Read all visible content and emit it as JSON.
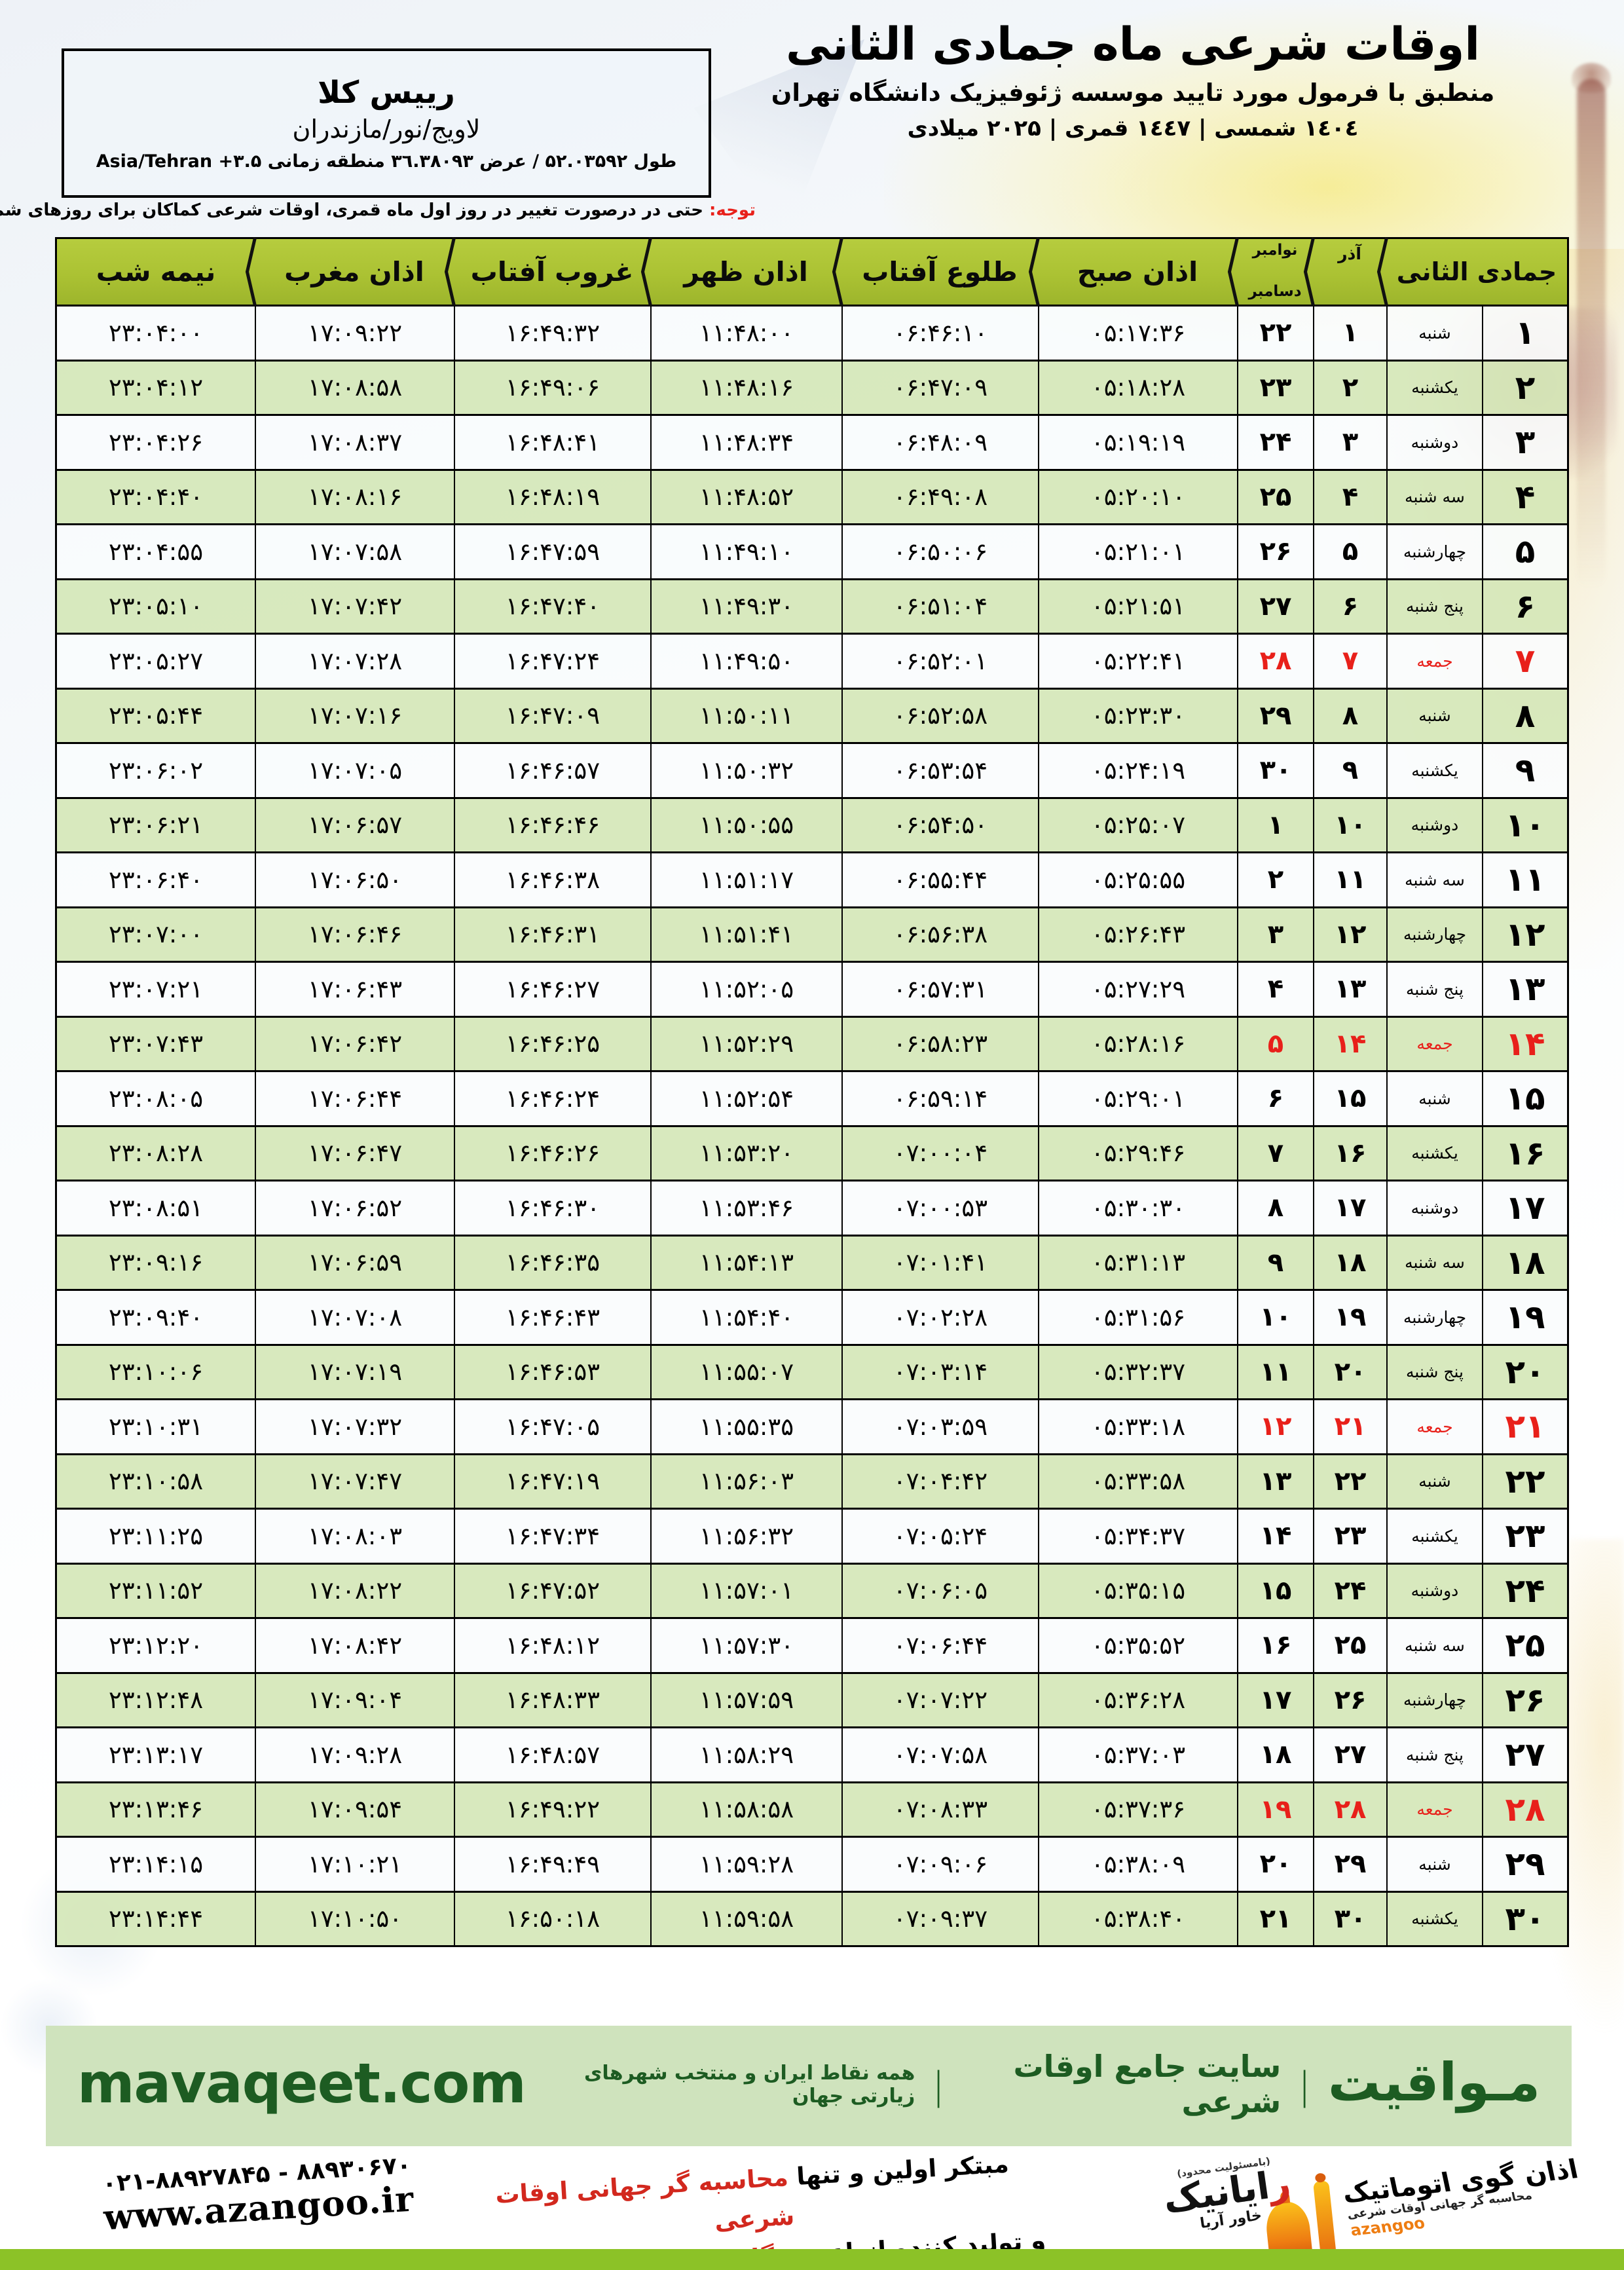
{
  "header": {
    "title": "اوقات شرعی ماه جمادی الثانی",
    "subtitle": "منطبق با فرمول مورد تایید موسسه ژئوفیزیک دانشگاه تهران",
    "dates": "۱٤۰٤ شمسی | ۱٤٤۷ قمری | ۲۰۲۵ میلادی"
  },
  "location": {
    "name": "رییس کلا",
    "region": "لاویج/نور/مازندران",
    "coords_fa": "طول ۵۲.۰۳۵۹۲ / عرض ۳٦.۳۸۰۹۳ منطقه زمانی",
    "coords_tz": "Asia/Tehran +۳.۵"
  },
  "notice": {
    "label": "توجه:",
    "text": " حتی در درصورت تغییر در روز اول ماه قمری، اوقات شرعی کماکان برای روزهای شمسی و میلادی معتبر است."
  },
  "table": {
    "columns": [
      {
        "key": "jumada",
        "label": "جمادی الثانی",
        "span": 2
      },
      {
        "key": "azar",
        "label": "آذر"
      },
      {
        "key": "nov-dec",
        "label": "نوامبر",
        "label2": "دسامبر"
      },
      {
        "key": "azan-sobh",
        "label": "اذان صبح"
      },
      {
        "key": "tolu-aftab",
        "label": "طلوع آفتاب"
      },
      {
        "key": "azan-zohr",
        "label": "اذان ظهر"
      },
      {
        "key": "ghorub-aftab",
        "label": "غروب آفتاب"
      },
      {
        "key": "azan-maghreb",
        "label": "اذان مغرب"
      },
      {
        "key": "nimeshab",
        "label": "نیمه شب"
      }
    ],
    "rows": [
      {
        "day": "۱",
        "weekday": "شنبه",
        "azar": "۱",
        "greg": "۲۲",
        "sobh": "۰۵:۱۷:۳۶",
        "tolu": "۰۶:۴۶:۱۰",
        "zohr": "۱۱:۴۸:۰۰",
        "ghorub": "۱۶:۴۹:۳۲",
        "maghreb": "۱۷:۰۹:۲۲",
        "nimeshab": "۲۳:۰۴:۰۰",
        "friday": false
      },
      {
        "day": "۲",
        "weekday": "یکشنبه",
        "azar": "۲",
        "greg": "۲۳",
        "sobh": "۰۵:۱۸:۲۸",
        "tolu": "۰۶:۴۷:۰۹",
        "zohr": "۱۱:۴۸:۱۶",
        "ghorub": "۱۶:۴۹:۰۶",
        "maghreb": "۱۷:۰۸:۵۸",
        "nimeshab": "۲۳:۰۴:۱۲",
        "friday": false
      },
      {
        "day": "۳",
        "weekday": "دوشنبه",
        "azar": "۳",
        "greg": "۲۴",
        "sobh": "۰۵:۱۹:۱۹",
        "tolu": "۰۶:۴۸:۰۹",
        "zohr": "۱۱:۴۸:۳۴",
        "ghorub": "۱۶:۴۸:۴۱",
        "maghreb": "۱۷:۰۸:۳۷",
        "nimeshab": "۲۳:۰۴:۲۶",
        "friday": false
      },
      {
        "day": "۴",
        "weekday": "سه شنبه",
        "azar": "۴",
        "greg": "۲۵",
        "sobh": "۰۵:۲۰:۱۰",
        "tolu": "۰۶:۴۹:۰۸",
        "zohr": "۱۱:۴۸:۵۲",
        "ghorub": "۱۶:۴۸:۱۹",
        "maghreb": "۱۷:۰۸:۱۶",
        "nimeshab": "۲۳:۰۴:۴۰",
        "friday": false
      },
      {
        "day": "۵",
        "weekday": "چهارشنبه",
        "azar": "۵",
        "greg": "۲۶",
        "sobh": "۰۵:۲۱:۰۱",
        "tolu": "۰۶:۵۰:۰۶",
        "zohr": "۱۱:۴۹:۱۰",
        "ghorub": "۱۶:۴۷:۵۹",
        "maghreb": "۱۷:۰۷:۵۸",
        "nimeshab": "۲۳:۰۴:۵۵",
        "friday": false
      },
      {
        "day": "۶",
        "weekday": "پنج شنبه",
        "azar": "۶",
        "greg": "۲۷",
        "sobh": "۰۵:۲۱:۵۱",
        "tolu": "۰۶:۵۱:۰۴",
        "zohr": "۱۱:۴۹:۳۰",
        "ghorub": "۱۶:۴۷:۴۰",
        "maghreb": "۱۷:۰۷:۴۲",
        "nimeshab": "۲۳:۰۵:۱۰",
        "friday": false
      },
      {
        "day": "۷",
        "weekday": "جمعه",
        "azar": "۷",
        "greg": "۲۸",
        "sobh": "۰۵:۲۲:۴۱",
        "tolu": "۰۶:۵۲:۰۱",
        "zohr": "۱۱:۴۹:۵۰",
        "ghorub": "۱۶:۴۷:۲۴",
        "maghreb": "۱۷:۰۷:۲۸",
        "nimeshab": "۲۳:۰۵:۲۷",
        "friday": true
      },
      {
        "day": "۸",
        "weekday": "شنبه",
        "azar": "۸",
        "greg": "۲۹",
        "sobh": "۰۵:۲۳:۳۰",
        "tolu": "۰۶:۵۲:۵۸",
        "zohr": "۱۱:۵۰:۱۱",
        "ghorub": "۱۶:۴۷:۰۹",
        "maghreb": "۱۷:۰۷:۱۶",
        "nimeshab": "۲۳:۰۵:۴۴",
        "friday": false
      },
      {
        "day": "۹",
        "weekday": "یکشنبه",
        "azar": "۹",
        "greg": "۳۰",
        "sobh": "۰۵:۲۴:۱۹",
        "tolu": "۰۶:۵۳:۵۴",
        "zohr": "۱۱:۵۰:۳۲",
        "ghorub": "۱۶:۴۶:۵۷",
        "maghreb": "۱۷:۰۷:۰۵",
        "nimeshab": "۲۳:۰۶:۰۲",
        "friday": false
      },
      {
        "day": "۱۰",
        "weekday": "دوشنبه",
        "azar": "۱۰",
        "greg": "۱",
        "sobh": "۰۵:۲۵:۰۷",
        "tolu": "۰۶:۵۴:۵۰",
        "zohr": "۱۱:۵۰:۵۵",
        "ghorub": "۱۶:۴۶:۴۶",
        "maghreb": "۱۷:۰۶:۵۷",
        "nimeshab": "۲۳:۰۶:۲۱",
        "friday": false
      },
      {
        "day": "۱۱",
        "weekday": "سه شنبه",
        "azar": "۱۱",
        "greg": "۲",
        "sobh": "۰۵:۲۵:۵۵",
        "tolu": "۰۶:۵۵:۴۴",
        "zohr": "۱۱:۵۱:۱۷",
        "ghorub": "۱۶:۴۶:۳۸",
        "maghreb": "۱۷:۰۶:۵۰",
        "nimeshab": "۲۳:۰۶:۴۰",
        "friday": false
      },
      {
        "day": "۱۲",
        "weekday": "چهارشنبه",
        "azar": "۱۲",
        "greg": "۳",
        "sobh": "۰۵:۲۶:۴۳",
        "tolu": "۰۶:۵۶:۳۸",
        "zohr": "۱۱:۵۱:۴۱",
        "ghorub": "۱۶:۴۶:۳۱",
        "maghreb": "۱۷:۰۶:۴۶",
        "nimeshab": "۲۳:۰۷:۰۰",
        "friday": false
      },
      {
        "day": "۱۳",
        "weekday": "پنج شنبه",
        "azar": "۱۳",
        "greg": "۴",
        "sobh": "۰۵:۲۷:۲۹",
        "tolu": "۰۶:۵۷:۳۱",
        "zohr": "۱۱:۵۲:۰۵",
        "ghorub": "۱۶:۴۶:۲۷",
        "maghreb": "۱۷:۰۶:۴۳",
        "nimeshab": "۲۳:۰۷:۲۱",
        "friday": false
      },
      {
        "day": "۱۴",
        "weekday": "جمعه",
        "azar": "۱۴",
        "greg": "۵",
        "sobh": "۰۵:۲۸:۱۶",
        "tolu": "۰۶:۵۸:۲۳",
        "zohr": "۱۱:۵۲:۲۹",
        "ghorub": "۱۶:۴۶:۲۵",
        "maghreb": "۱۷:۰۶:۴۲",
        "nimeshab": "۲۳:۰۷:۴۳",
        "friday": true
      },
      {
        "day": "۱۵",
        "weekday": "شنبه",
        "azar": "۱۵",
        "greg": "۶",
        "sobh": "۰۵:۲۹:۰۱",
        "tolu": "۰۶:۵۹:۱۴",
        "zohr": "۱۱:۵۲:۵۴",
        "ghorub": "۱۶:۴۶:۲۴",
        "maghreb": "۱۷:۰۶:۴۴",
        "nimeshab": "۲۳:۰۸:۰۵",
        "friday": false
      },
      {
        "day": "۱۶",
        "weekday": "یکشنبه",
        "azar": "۱۶",
        "greg": "۷",
        "sobh": "۰۵:۲۹:۴۶",
        "tolu": "۰۷:۰۰:۰۴",
        "zohr": "۱۱:۵۳:۲۰",
        "ghorub": "۱۶:۴۶:۲۶",
        "maghreb": "۱۷:۰۶:۴۷",
        "nimeshab": "۲۳:۰۸:۲۸",
        "friday": false
      },
      {
        "day": "۱۷",
        "weekday": "دوشنبه",
        "azar": "۱۷",
        "greg": "۸",
        "sobh": "۰۵:۳۰:۳۰",
        "tolu": "۰۷:۰۰:۵۳",
        "zohr": "۱۱:۵۳:۴۶",
        "ghorub": "۱۶:۴۶:۳۰",
        "maghreb": "۱۷:۰۶:۵۲",
        "nimeshab": "۲۳:۰۸:۵۱",
        "friday": false
      },
      {
        "day": "۱۸",
        "weekday": "سه شنبه",
        "azar": "۱۸",
        "greg": "۹",
        "sobh": "۰۵:۳۱:۱۳",
        "tolu": "۰۷:۰۱:۴۱",
        "zohr": "۱۱:۵۴:۱۳",
        "ghorub": "۱۶:۴۶:۳۵",
        "maghreb": "۱۷:۰۶:۵۹",
        "nimeshab": "۲۳:۰۹:۱۶",
        "friday": false
      },
      {
        "day": "۱۹",
        "weekday": "چهارشنبه",
        "azar": "۱۹",
        "greg": "۱۰",
        "sobh": "۰۵:۳۱:۵۶",
        "tolu": "۰۷:۰۲:۲۸",
        "zohr": "۱۱:۵۴:۴۰",
        "ghorub": "۱۶:۴۶:۴۳",
        "maghreb": "۱۷:۰۷:۰۸",
        "nimeshab": "۲۳:۰۹:۴۰",
        "friday": false
      },
      {
        "day": "۲۰",
        "weekday": "پنج شنبه",
        "azar": "۲۰",
        "greg": "۱۱",
        "sobh": "۰۵:۳۲:۳۷",
        "tolu": "۰۷:۰۳:۱۴",
        "zohr": "۱۱:۵۵:۰۷",
        "ghorub": "۱۶:۴۶:۵۳",
        "maghreb": "۱۷:۰۷:۱۹",
        "nimeshab": "۲۳:۱۰:۰۶",
        "friday": false
      },
      {
        "day": "۲۱",
        "weekday": "جمعه",
        "azar": "۲۱",
        "greg": "۱۲",
        "sobh": "۰۵:۳۳:۱۸",
        "tolu": "۰۷:۰۳:۵۹",
        "zohr": "۱۱:۵۵:۳۵",
        "ghorub": "۱۶:۴۷:۰۵",
        "maghreb": "۱۷:۰۷:۳۲",
        "nimeshab": "۲۳:۱۰:۳۱",
        "friday": true
      },
      {
        "day": "۲۲",
        "weekday": "شنبه",
        "azar": "۲۲",
        "greg": "۱۳",
        "sobh": "۰۵:۳۳:۵۸",
        "tolu": "۰۷:۰۴:۴۲",
        "zohr": "۱۱:۵۶:۰۳",
        "ghorub": "۱۶:۴۷:۱۹",
        "maghreb": "۱۷:۰۷:۴۷",
        "nimeshab": "۲۳:۱۰:۵۸",
        "friday": false
      },
      {
        "day": "۲۳",
        "weekday": "یکشنبه",
        "azar": "۲۳",
        "greg": "۱۴",
        "sobh": "۰۵:۳۴:۳۷",
        "tolu": "۰۷:۰۵:۲۴",
        "zohr": "۱۱:۵۶:۳۲",
        "ghorub": "۱۶:۴۷:۳۴",
        "maghreb": "۱۷:۰۸:۰۳",
        "nimeshab": "۲۳:۱۱:۲۵",
        "friday": false
      },
      {
        "day": "۲۴",
        "weekday": "دوشنبه",
        "azar": "۲۴",
        "greg": "۱۵",
        "sobh": "۰۵:۳۵:۱۵",
        "tolu": "۰۷:۰۶:۰۵",
        "zohr": "۱۱:۵۷:۰۱",
        "ghorub": "۱۶:۴۷:۵۲",
        "maghreb": "۱۷:۰۸:۲۲",
        "nimeshab": "۲۳:۱۱:۵۲",
        "friday": false
      },
      {
        "day": "۲۵",
        "weekday": "سه شنبه",
        "azar": "۲۵",
        "greg": "۱۶",
        "sobh": "۰۵:۳۵:۵۲",
        "tolu": "۰۷:۰۶:۴۴",
        "zohr": "۱۱:۵۷:۳۰",
        "ghorub": "۱۶:۴۸:۱۲",
        "maghreb": "۱۷:۰۸:۴۲",
        "nimeshab": "۲۳:۱۲:۲۰",
        "friday": false
      },
      {
        "day": "۲۶",
        "weekday": "چهارشنبه",
        "azar": "۲۶",
        "greg": "۱۷",
        "sobh": "۰۵:۳۶:۲۸",
        "tolu": "۰۷:۰۷:۲۲",
        "zohr": "۱۱:۵۷:۵۹",
        "ghorub": "۱۶:۴۸:۳۳",
        "maghreb": "۱۷:۰۹:۰۴",
        "nimeshab": "۲۳:۱۲:۴۸",
        "friday": false
      },
      {
        "day": "۲۷",
        "weekday": "پنج شنبه",
        "azar": "۲۷",
        "greg": "۱۸",
        "sobh": "۰۵:۳۷:۰۳",
        "tolu": "۰۷:۰۷:۵۸",
        "zohr": "۱۱:۵۸:۲۹",
        "ghorub": "۱۶:۴۸:۵۷",
        "maghreb": "۱۷:۰۹:۲۸",
        "nimeshab": "۲۳:۱۳:۱۷",
        "friday": false
      },
      {
        "day": "۲۸",
        "weekday": "جمعه",
        "azar": "۲۸",
        "greg": "۱۹",
        "sobh": "۰۵:۳۷:۳۶",
        "tolu": "۰۷:۰۸:۳۳",
        "zohr": "۱۱:۵۸:۵۸",
        "ghorub": "۱۶:۴۹:۲۲",
        "maghreb": "۱۷:۰۹:۵۴",
        "nimeshab": "۲۳:۱۳:۴۶",
        "friday": true
      },
      {
        "day": "۲۹",
        "weekday": "شنبه",
        "azar": "۲۹",
        "greg": "۲۰",
        "sobh": "۰۵:۳۸:۰۹",
        "tolu": "۰۷:۰۹:۰۶",
        "zohr": "۱۱:۵۹:۲۸",
        "ghorub": "۱۶:۴۹:۴۹",
        "maghreb": "۱۷:۱۰:۲۱",
        "nimeshab": "۲۳:۱۴:۱۵",
        "friday": false
      },
      {
        "day": "۳۰",
        "weekday": "یکشنبه",
        "azar": "۳۰",
        "greg": "۲۱",
        "sobh": "۰۵:۳۸:۴۰",
        "tolu": "۰۷:۰۹:۳۷",
        "zohr": "۱۱:۵۹:۵۸",
        "ghorub": "۱۶:۵۰:۱۸",
        "maghreb": "۱۷:۱۰:۵۰",
        "nimeshab": "۲۳:۱۴:۴۴",
        "friday": false
      }
    ]
  },
  "mavaqeet": {
    "logo": "مـواقیت",
    "sep": "|",
    "site_label": "سایت جامع اوقات شرعی",
    "tagline": "همه نقاط ایران و منتخب شهرهای زیارتی جهان",
    "url": "mavaqeet.com"
  },
  "footer": {
    "slogan1_black": "مبتکر اولین و تنها ",
    "slogan1_red": "محاسبه گر جهانی اوقات شرعی",
    "slogan2_black": "و تولید کننده انواع ",
    "slogan2_red": "دستگاه اذان گوی تمام خودکار ماهواره ای",
    "phone": "۰۲۱-۸۸۹۲۷۸۴۵ - ۸۸۹۳۰۶۷۰",
    "website": "www.azangoo.ir",
    "azangoo_brand": "اذان گوی اتوماتیک",
    "azangoo_tagline": "محاسبه گر جهانی اوقات شرعی",
    "azangoo_latin": "azangoo",
    "rayanik_top": "(بامسئولیت محدود)",
    "rayanik_first_letter": "ر",
    "rayanik_rest": "ایانیک",
    "rayanik_sub": "خاور آریا"
  },
  "colors": {
    "header_green": "#abc233",
    "row_green": "#d3e6b5",
    "friday_red": "#e8201a",
    "mavaqeet_green": "#1d5c22",
    "band_green": "#8cc227",
    "footer_red": "#d2281e"
  }
}
